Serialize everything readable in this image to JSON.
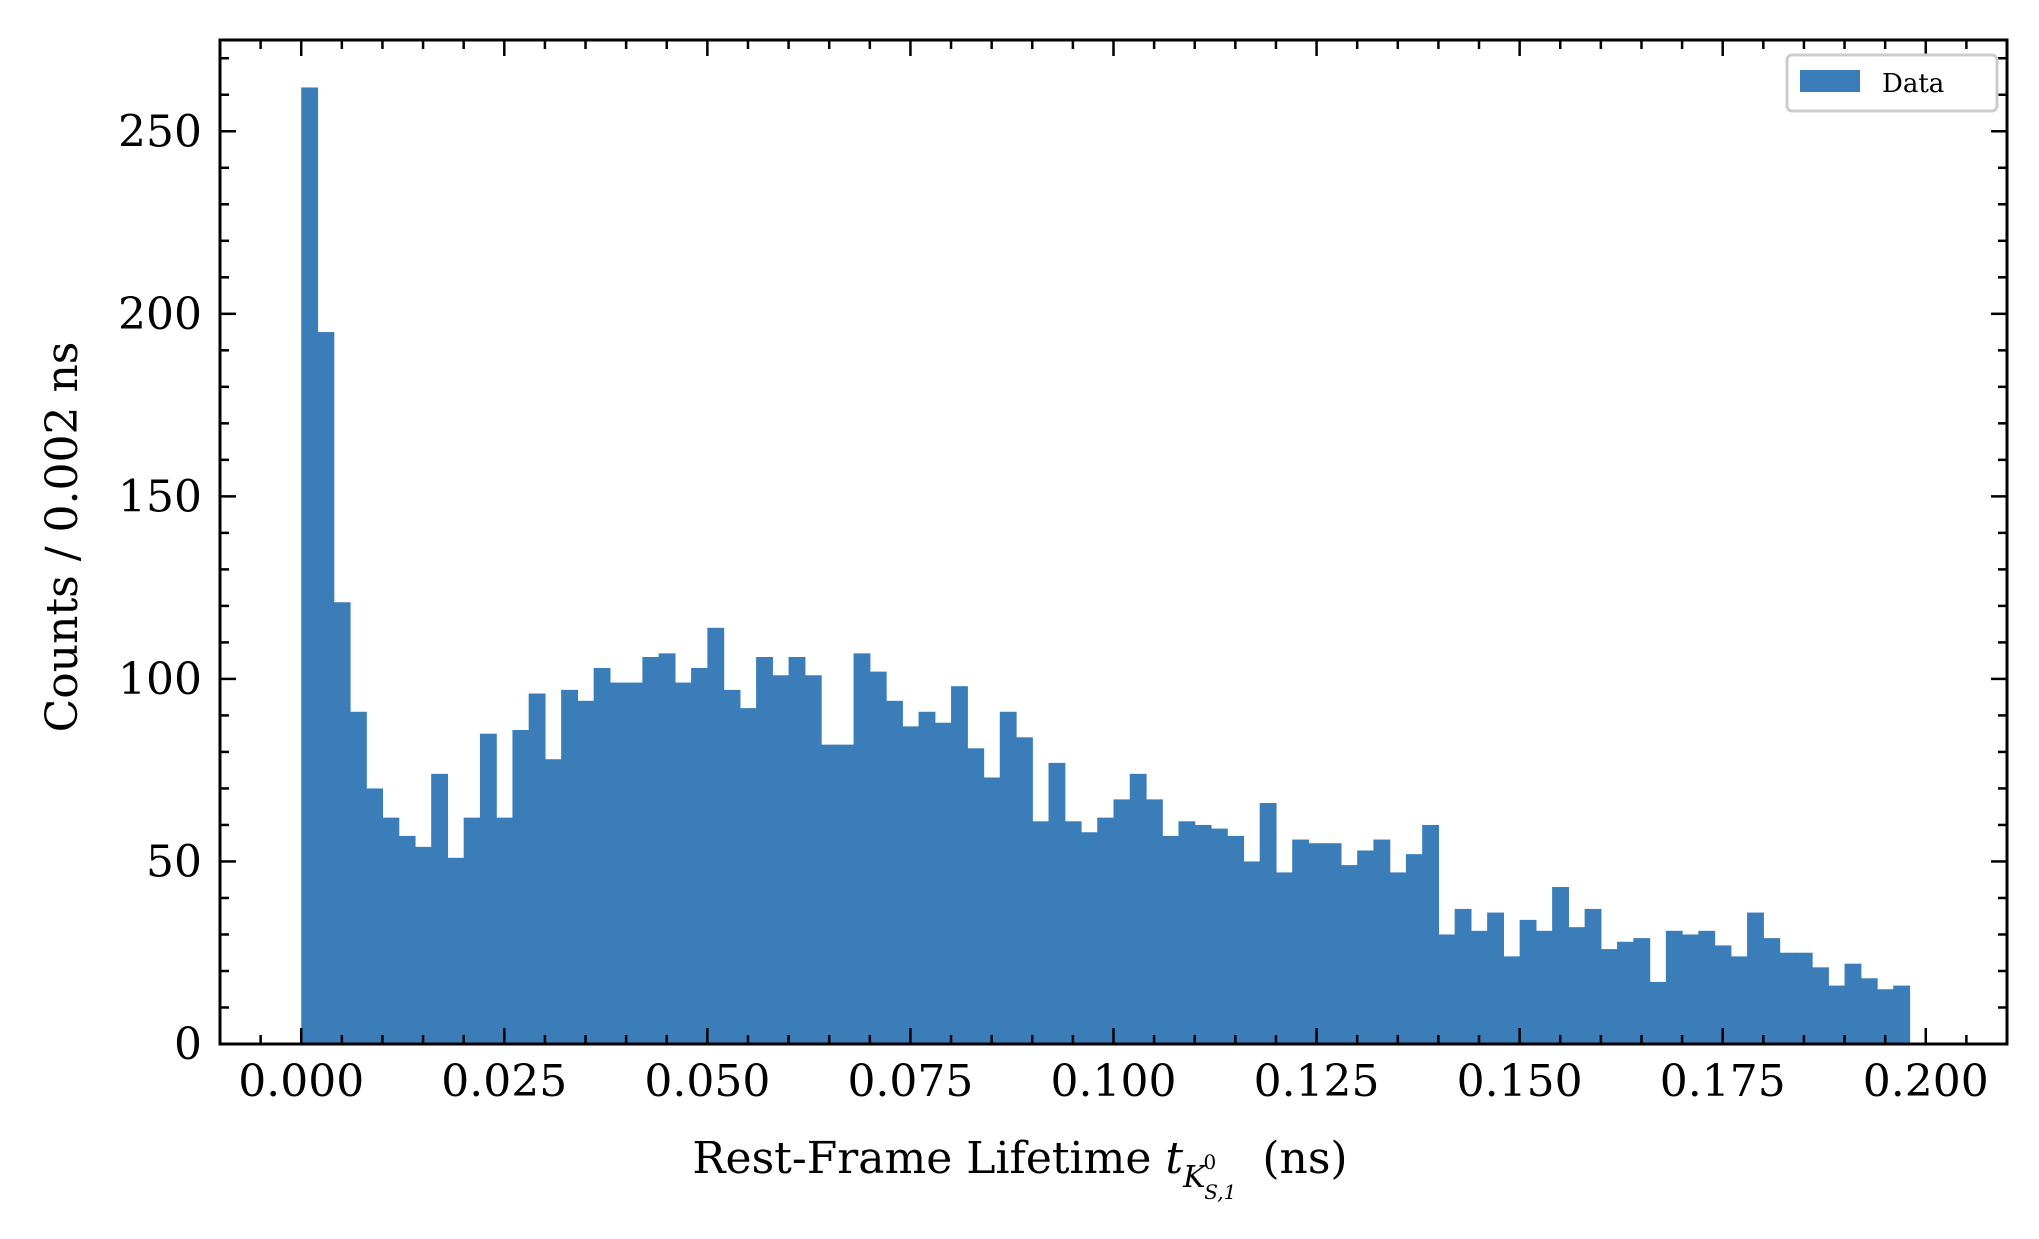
{
  "chart_data": {
    "type": "bar",
    "title": "",
    "xlabel": "Rest-Frame Lifetime",
    "xlabel_math": {
      "symbol": "t",
      "subscript": "K",
      "sup": "0",
      "sub2": "S,1"
    },
    "xlabel_unit": "(ns)",
    "ylabel": "Counts / 0.002 ns",
    "xlim": [
      -0.01,
      0.21
    ],
    "ylim": [
      0,
      275
    ],
    "grid": false,
    "legend_position": "top-right",
    "bin_start": 0.0,
    "bin_width": 0.002,
    "x_ticks": [
      {
        "value": 0.0,
        "label": "0.000"
      },
      {
        "value": 0.025,
        "label": "0.025"
      },
      {
        "value": 0.05,
        "label": "0.050"
      },
      {
        "value": 0.075,
        "label": "0.075"
      },
      {
        "value": 0.1,
        "label": "0.100"
      },
      {
        "value": 0.125,
        "label": "0.125"
      },
      {
        "value": 0.15,
        "label": "0.150"
      },
      {
        "value": 0.175,
        "label": "0.175"
      },
      {
        "value": 0.2,
        "label": "0.200"
      }
    ],
    "y_ticks": [
      {
        "value": 0,
        "label": "0"
      },
      {
        "value": 50,
        "label": "50"
      },
      {
        "value": 100,
        "label": "100"
      },
      {
        "value": 150,
        "label": "150"
      },
      {
        "value": 200,
        "label": "200"
      },
      {
        "value": 250,
        "label": "250"
      }
    ],
    "series": [
      {
        "name": "Data",
        "color": "#3a7db9",
        "values": [
          262,
          195,
          121,
          91,
          70,
          62,
          57,
          54,
          74,
          51,
          62,
          85,
          62,
          86,
          96,
          78,
          97,
          94,
          103,
          99,
          99,
          106,
          107,
          99,
          103,
          114,
          97,
          92,
          106,
          101,
          106,
          101,
          82,
          82,
          107,
          102,
          94,
          87,
          91,
          88,
          98,
          81,
          73,
          91,
          84,
          61,
          77,
          61,
          58,
          62,
          67,
          74,
          67,
          57,
          61,
          60,
          59,
          57,
          50,
          66,
          47,
          56,
          55,
          55,
          49,
          53,
          56,
          47,
          52,
          60,
          30,
          37,
          31,
          36,
          24,
          34,
          31,
          43,
          32,
          37,
          26,
          28,
          29,
          17,
          31,
          30,
          31,
          27,
          24,
          36,
          29,
          25,
          25,
          21,
          16,
          22,
          18,
          15,
          16
        ]
      }
    ]
  }
}
